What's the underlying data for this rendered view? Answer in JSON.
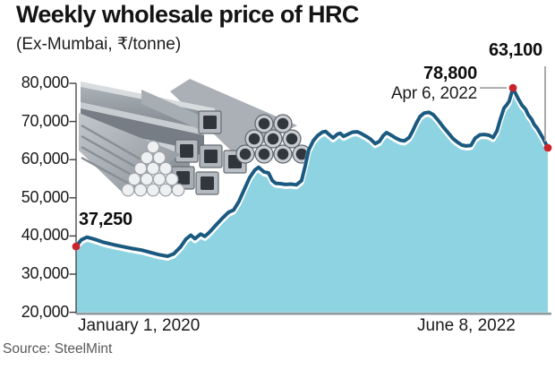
{
  "header": {
    "title": "Weekly wholesale price of HRC",
    "subtitle": "(Ex-Mumbai, ₹/tonne)"
  },
  "source": {
    "label": "Source: SteelMint"
  },
  "colors": {
    "line": "#1b5a80",
    "line_edge": "#ffffff",
    "fill": "#8ed3e1",
    "marker": "#c9242b",
    "axis": "#3f3f3f",
    "baseline": "#8d9ba0",
    "callout": "#a2a2a2"
  },
  "chart_data": {
    "type": "area",
    "title": "Weekly wholesale price of HRC",
    "unit": "₹/tonne, Ex-Mumbai",
    "ylim": [
      20000,
      80000
    ],
    "grid": false,
    "y_ticks": [
      {
        "value": 80000,
        "label": "80,000"
      },
      {
        "value": 70000,
        "label": "70,000"
      },
      {
        "value": 60000,
        "label": "60,000"
      },
      {
        "value": 50000,
        "label": "50,000"
      },
      {
        "value": 40000,
        "label": "40,000"
      },
      {
        "value": 30000,
        "label": "30,000"
      },
      {
        "value": 20000,
        "label": "20,000"
      }
    ],
    "x_axis": {
      "start_label": "January 1, 2020",
      "end_label": "June 8, 2022"
    },
    "annotations": {
      "start": {
        "label": "37,250",
        "value": 37250,
        "date": "January 1, 2020"
      },
      "peak": {
        "label": "78,800",
        "date_label": "Apr 6, 2022",
        "value": 78800
      },
      "end": {
        "label": "63,100",
        "value": 63100,
        "date": "June 8, 2022"
      }
    },
    "points": [
      [
        0.0,
        37250
      ],
      [
        0.011,
        39000
      ],
      [
        0.023,
        39700
      ],
      [
        0.04,
        39100
      ],
      [
        0.059,
        38300
      ],
      [
        0.08,
        37700
      ],
      [
        0.099,
        37200
      ],
      [
        0.12,
        36700
      ],
      [
        0.139,
        36300
      ],
      [
        0.157,
        35700
      ],
      [
        0.176,
        35100
      ],
      [
        0.194,
        34700
      ],
      [
        0.207,
        35300
      ],
      [
        0.222,
        37200
      ],
      [
        0.233,
        39200
      ],
      [
        0.243,
        40200
      ],
      [
        0.252,
        39300
      ],
      [
        0.264,
        40500
      ],
      [
        0.273,
        39900
      ],
      [
        0.283,
        41000
      ],
      [
        0.296,
        42800
      ],
      [
        0.309,
        44500
      ],
      [
        0.323,
        46200
      ],
      [
        0.334,
        46800
      ],
      [
        0.345,
        49000
      ],
      [
        0.357,
        52300
      ],
      [
        0.368,
        55300
      ],
      [
        0.379,
        57300
      ],
      [
        0.387,
        58000
      ],
      [
        0.398,
        56800
      ],
      [
        0.408,
        56500
      ],
      [
        0.416,
        54500
      ],
      [
        0.423,
        53800
      ],
      [
        0.433,
        53700
      ],
      [
        0.444,
        53500
      ],
      [
        0.455,
        53600
      ],
      [
        0.467,
        53400
      ],
      [
        0.478,
        54500
      ],
      [
        0.486,
        58500
      ],
      [
        0.493,
        62500
      ],
      [
        0.503,
        65000
      ],
      [
        0.512,
        66300
      ],
      [
        0.522,
        67200
      ],
      [
        0.529,
        67400
      ],
      [
        0.537,
        66500
      ],
      [
        0.545,
        65700
      ],
      [
        0.554,
        66700
      ],
      [
        0.56,
        66900
      ],
      [
        0.567,
        66100
      ],
      [
        0.577,
        66700
      ],
      [
        0.586,
        67200
      ],
      [
        0.596,
        67300
      ],
      [
        0.605,
        66800
      ],
      [
        0.615,
        66100
      ],
      [
        0.624,
        65400
      ],
      [
        0.634,
        64200
      ],
      [
        0.643,
        64800
      ],
      [
        0.651,
        66300
      ],
      [
        0.658,
        67100
      ],
      [
        0.668,
        66400
      ],
      [
        0.677,
        65700
      ],
      [
        0.687,
        65100
      ],
      [
        0.696,
        64900
      ],
      [
        0.706,
        65800
      ],
      [
        0.713,
        67400
      ],
      [
        0.721,
        69500
      ],
      [
        0.729,
        71300
      ],
      [
        0.738,
        72200
      ],
      [
        0.748,
        72400
      ],
      [
        0.757,
        71800
      ],
      [
        0.767,
        70400
      ],
      [
        0.778,
        68600
      ],
      [
        0.789,
        67000
      ],
      [
        0.799,
        65500
      ],
      [
        0.808,
        64600
      ],
      [
        0.818,
        63800
      ],
      [
        0.827,
        63600
      ],
      [
        0.837,
        63700
      ],
      [
        0.846,
        65600
      ],
      [
        0.856,
        66500
      ],
      [
        0.865,
        66600
      ],
      [
        0.875,
        66400
      ],
      [
        0.884,
        65800
      ],
      [
        0.892,
        67500
      ],
      [
        0.899,
        70500
      ],
      [
        0.907,
        73500
      ],
      [
        0.913,
        74400
      ],
      [
        0.918,
        75300
      ],
      [
        0.922,
        77000
      ],
      [
        0.926,
        78800
      ],
      [
        0.932,
        77200
      ],
      [
        0.937,
        76000
      ],
      [
        0.945,
        74300
      ],
      [
        0.953,
        73200
      ],
      [
        0.958,
        71800
      ],
      [
        0.966,
        70500
      ],
      [
        0.971,
        69200
      ],
      [
        0.977,
        68300
      ],
      [
        0.983,
        67100
      ],
      [
        0.989,
        65800
      ],
      [
        0.994,
        64600
      ],
      [
        1.0,
        63100
      ]
    ]
  }
}
